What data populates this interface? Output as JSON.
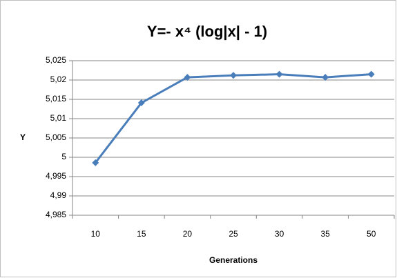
{
  "chart_data": {
    "type": "line",
    "title": "Y=- x⁴ (log|x| - 1)",
    "x_label": "Generations",
    "y_label": "Y",
    "categories": [
      "10",
      "15",
      "20",
      "25",
      "30",
      "35",
      "50"
    ],
    "series": [
      {
        "name": "Y",
        "color": "#4a7ebb",
        "values": [
          4.9986,
          5.0141,
          5.0207,
          5.0212,
          5.0215,
          5.0207,
          5.0215
        ]
      }
    ],
    "ylim": [
      4.985,
      5.025
    ],
    "yticks": [
      {
        "value": 4.985,
        "label": "4,985"
      },
      {
        "value": 4.99,
        "label": "4,99"
      },
      {
        "value": 4.995,
        "label": "4,995"
      },
      5,
      {
        "value": 5.005,
        "label": "5,005"
      },
      {
        "value": 5.01,
        "label": "5,01"
      },
      {
        "value": 5.015,
        "label": "5,015"
      },
      {
        "value": 5.02,
        "label": "5,02"
      },
      {
        "value": 5.025,
        "label": "5,025"
      }
    ],
    "grid": true
  }
}
